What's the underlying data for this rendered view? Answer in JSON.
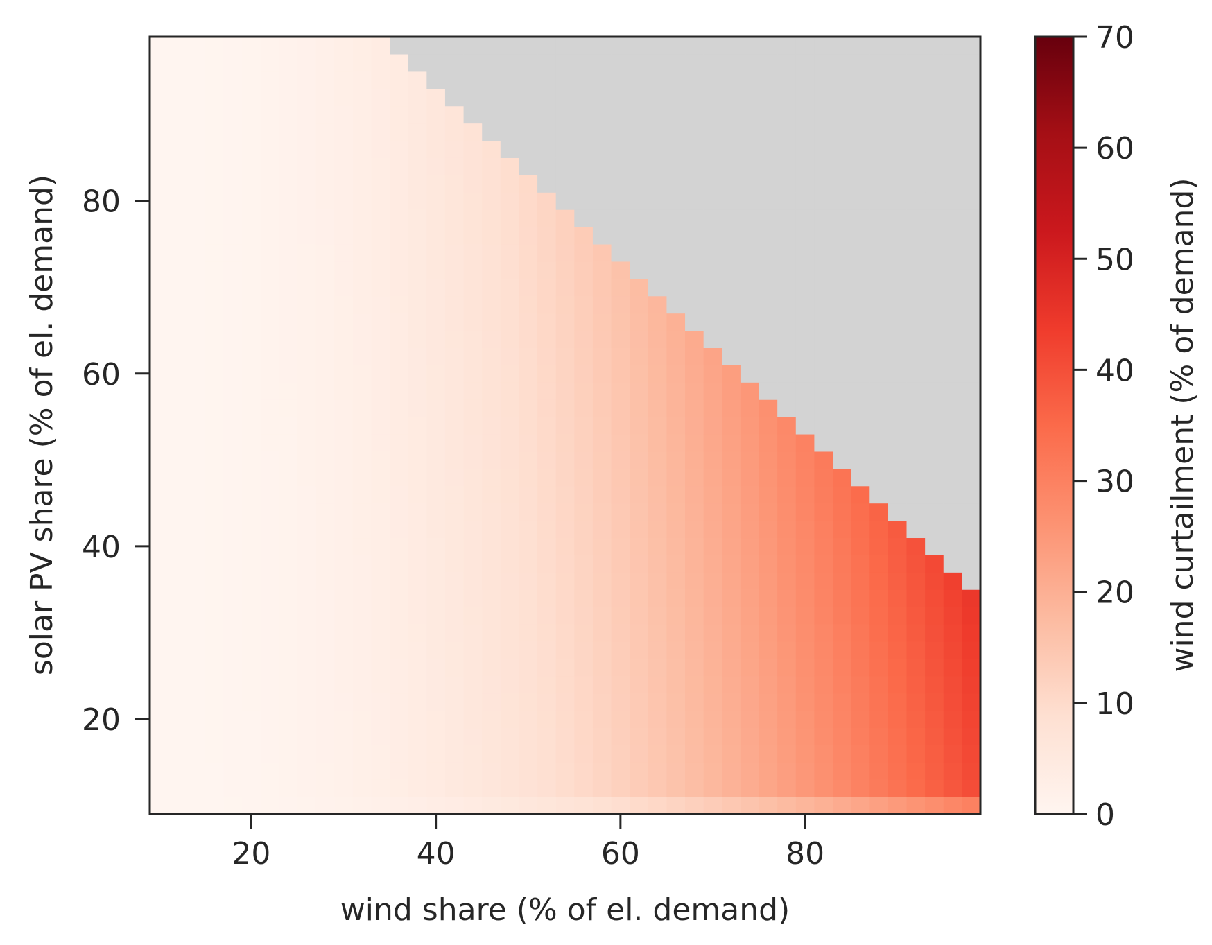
{
  "chart_data": {
    "type": "heatmap",
    "title": "",
    "xlabel": "wind share (% of el. demand)",
    "ylabel": "solar PV share (% of el. demand)",
    "colorbar_label": "wind curtailment (% of demand)",
    "x_range": [
      9,
      99
    ],
    "y_range": [
      9,
      99
    ],
    "cell_size": 2,
    "xticks": [
      20,
      40,
      60,
      80
    ],
    "yticks": [
      20,
      40,
      60,
      80
    ],
    "colorbar_ticks": [
      0,
      10,
      20,
      30,
      40,
      50,
      60,
      70
    ],
    "colorbar_range": [
      0,
      70
    ],
    "colormap": "Reds",
    "colormap_stops": [
      "#fff5f0",
      "#fee0d2",
      "#fcbba1",
      "#fc9272",
      "#fb6a4a",
      "#ef3b2c",
      "#cb181d",
      "#a50f15",
      "#67000d"
    ],
    "missing_color": "#d3d3d3",
    "missing_region": "cells where wind share + solar PV share exceed about 132",
    "sample_values": {
      "wind_share": [
        10,
        20,
        30,
        40,
        50,
        60,
        70,
        80,
        90,
        98
      ],
      "curtailment_at_low_solar": [
        0,
        0.5,
        1.5,
        3.5,
        7,
        12,
        17,
        23,
        31,
        40
      ],
      "curtailment_at_solar_10": [
        0,
        0,
        0,
        0,
        1,
        3,
        8,
        15,
        22,
        29
      ]
    }
  }
}
